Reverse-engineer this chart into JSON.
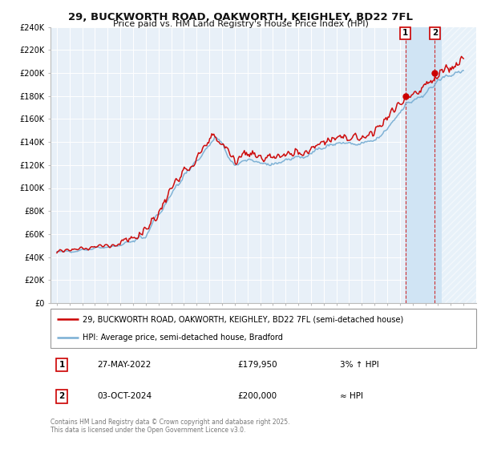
{
  "title_line1": "29, BUCKWORTH ROAD, OAKWORTH, KEIGHLEY, BD22 7FL",
  "title_line2": "Price paid vs. HM Land Registry's House Price Index (HPI)",
  "ylabel_ticks": [
    "£0",
    "£20K",
    "£40K",
    "£60K",
    "£80K",
    "£100K",
    "£120K",
    "£140K",
    "£160K",
    "£180K",
    "£200K",
    "£220K",
    "£240K"
  ],
  "ytick_vals": [
    0,
    20000,
    40000,
    60000,
    80000,
    100000,
    120000,
    140000,
    160000,
    180000,
    200000,
    220000,
    240000
  ],
  "ylim": [
    0,
    240000
  ],
  "xlim_start": 1994.5,
  "xlim_end": 2027.5,
  "legend_line1": "29, BUCKWORTH ROAD, OAKWORTH, KEIGHLEY, BD22 7FL (semi-detached house)",
  "legend_line2": "HPI: Average price, semi-detached house, Bradford",
  "price_color": "#cc0000",
  "hpi_color": "#7aafd4",
  "annotation1_label": "1",
  "annotation1_date": "27-MAY-2022",
  "annotation1_price": "£179,950",
  "annotation1_hpi": "3% ↑ HPI",
  "annotation2_label": "2",
  "annotation2_date": "03-OCT-2024",
  "annotation2_price": "£200,000",
  "annotation2_hpi": "≈ HPI",
  "footnote": "Contains HM Land Registry data © Crown copyright and database right 2025.\nThis data is licensed under the Open Government Licence v3.0.",
  "sale1_x": 2022.42,
  "sale1_y": 179950,
  "sale2_x": 2024.75,
  "sale2_y": 200000,
  "background_color": "#ffffff",
  "plot_bg_color": "#e8f0f8",
  "shade_color": "#d0e4f4",
  "shade_start": 2022.42
}
